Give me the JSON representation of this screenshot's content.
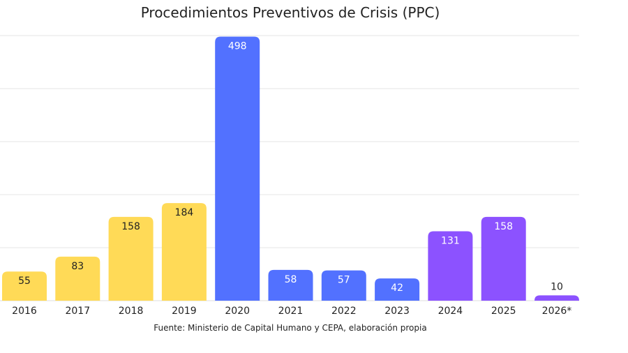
{
  "chart_data": {
    "type": "bar",
    "title": "Procedimientos Preventivos de Crisis (PPC)",
    "source": "Fuente: Ministerio de Capital Humano y CEPA, elaboración propia",
    "categories": [
      "2016",
      "2017",
      "2018",
      "2019",
      "2020",
      "2021",
      "2022",
      "2023",
      "2024",
      "2025",
      "2026*"
    ],
    "values": [
      55,
      83,
      158,
      184,
      498,
      58,
      57,
      42,
      131,
      158,
      10
    ],
    "bar_colors": [
      "#FFDA57",
      "#FFDA57",
      "#FFDA57",
      "#FFDA57",
      "#5271FF",
      "#5271FF",
      "#5271FF",
      "#5271FF",
      "#8C52FF",
      "#8C52FF",
      "#8C52FF"
    ],
    "label_colors": [
      "#222222",
      "#222222",
      "#222222",
      "#222222",
      "#ffffff",
      "#ffffff",
      "#ffffff",
      "#ffffff",
      "#ffffff",
      "#ffffff",
      "#222222"
    ],
    "ylim": [
      0,
      500
    ],
    "grid": true,
    "xlabel": "",
    "ylabel": ""
  }
}
